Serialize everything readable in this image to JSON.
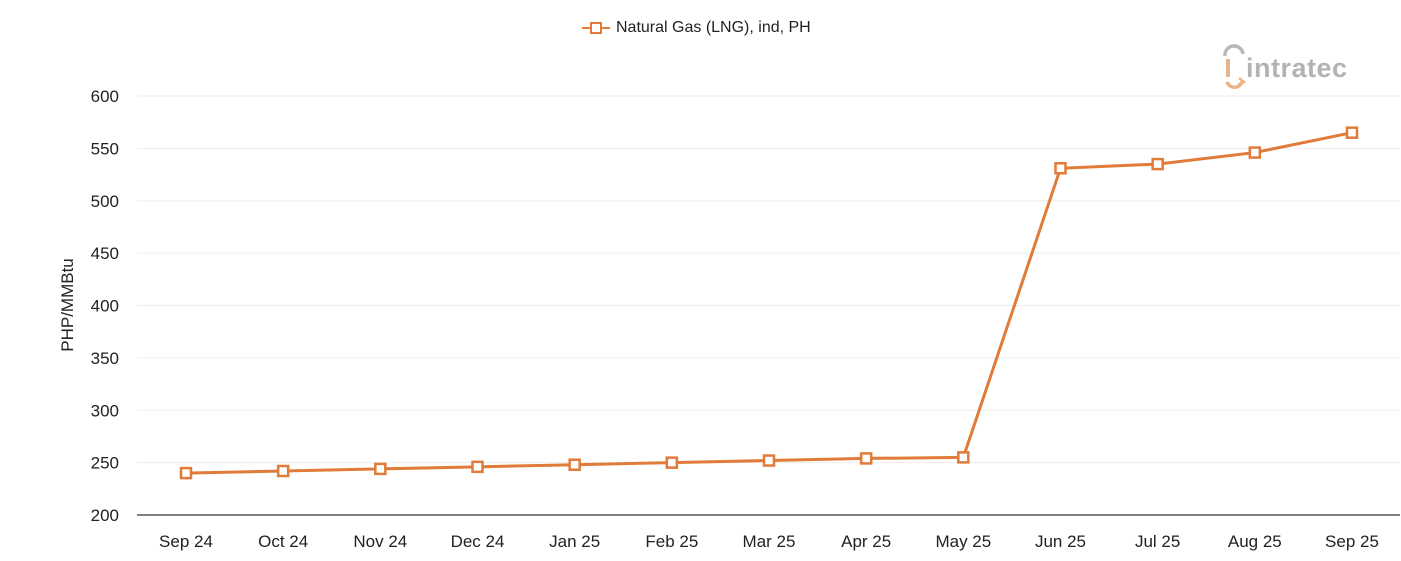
{
  "legend": {
    "label": "Natural Gas (LNG), ind, PH"
  },
  "watermark": {
    "text": "intratec",
    "logo_icon": "intratec-logo-icon"
  },
  "colors": {
    "series": "#e07b39",
    "grid": "#ededed",
    "axis": "#555555",
    "text": "#222222",
    "logo_gray": "#9a9a9a",
    "logo_accent": "#e8b48c"
  },
  "chart_data": {
    "type": "line",
    "title": "",
    "xlabel": "",
    "ylabel": "PHP/MMBtu",
    "ylim": [
      200,
      600
    ],
    "yticks": [
      200,
      250,
      300,
      350,
      400,
      450,
      500,
      550,
      600
    ],
    "grid": true,
    "legend_position": "top-center",
    "categories": [
      "Sep 24",
      "Oct 24",
      "Nov 24",
      "Dec 24",
      "Jan 25",
      "Feb 25",
      "Mar 25",
      "Apr 25",
      "May 25",
      "Jun 25",
      "Jul 25",
      "Aug 25",
      "Sep 25"
    ],
    "series": [
      {
        "name": "Natural Gas (LNG), ind, PH",
        "marker": "open-square",
        "values": [
          240,
          242,
          244,
          246,
          248,
          250,
          252,
          254,
          255,
          531,
          535,
          546,
          565
        ]
      }
    ]
  }
}
